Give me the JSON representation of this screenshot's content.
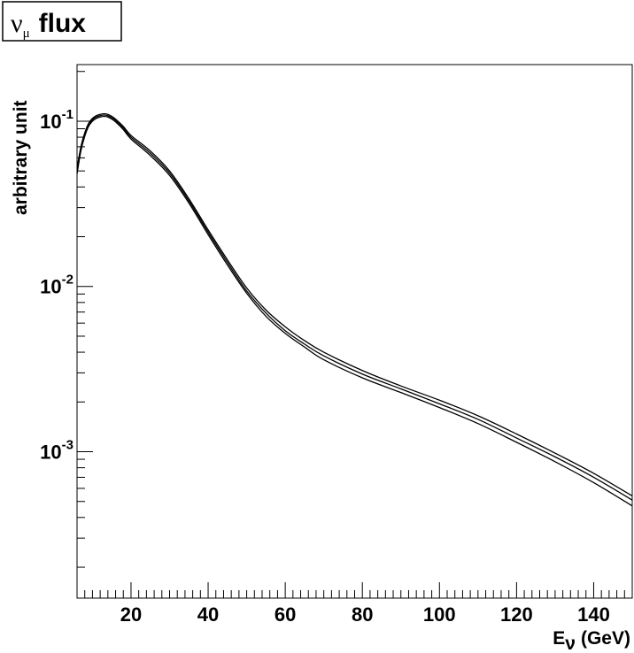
{
  "chart_data": {
    "type": "line",
    "title": {
      "symbol": "ν",
      "subscript": "μ",
      "text": "flux"
    },
    "xlabel": {
      "main": "E",
      "subscript": "ν",
      "unit": "(GeV)"
    },
    "ylabel": "arbitrary unit",
    "x_scale": "linear",
    "y_scale": "log",
    "xlim": [
      6,
      150
    ],
    "ylim": [
      0.00013,
      0.22
    ],
    "x_ticks": [
      20,
      40,
      60,
      80,
      100,
      120,
      140
    ],
    "x_tick_labels": [
      "20",
      "40",
      "60",
      "80",
      "100",
      "120",
      "140"
    ],
    "y_ticks": [
      0.1,
      0.01,
      0.001
    ],
    "y_tick_labels": [
      {
        "base": "10",
        "exp": "-1"
      },
      {
        "base": "10",
        "exp": "-2"
      },
      {
        "base": "10",
        "exp": "-3"
      }
    ],
    "grid": false,
    "legend": false,
    "series": [
      {
        "x": [
          6,
          7,
          8,
          9,
          10,
          11,
          12,
          13,
          14,
          15,
          16,
          18,
          20,
          25,
          30,
          35,
          40,
          45,
          50,
          55,
          60,
          65,
          70,
          80,
          90,
          100,
          110,
          120,
          130,
          140,
          150
        ],
        "values": [
          0.052,
          0.07,
          0.085,
          0.097,
          0.104,
          0.108,
          0.11,
          0.111,
          0.11,
          0.107,
          0.103,
          0.093,
          0.082,
          0.066,
          0.05,
          0.034,
          0.022,
          0.0145,
          0.0098,
          0.0072,
          0.0057,
          0.0047,
          0.004,
          0.0031,
          0.0025,
          0.00205,
          0.00165,
          0.00128,
          0.00098,
          0.00074,
          0.00054
        ]
      },
      {
        "x": [
          6,
          7,
          8,
          9,
          10,
          11,
          12,
          13,
          14,
          15,
          16,
          18,
          20,
          25,
          30,
          35,
          40,
          45,
          50,
          55,
          60,
          65,
          70,
          80,
          90,
          100,
          110,
          120,
          130,
          140,
          150
        ],
        "values": [
          0.05,
          0.068,
          0.083,
          0.095,
          0.102,
          0.106,
          0.108,
          0.109,
          0.108,
          0.105,
          0.101,
          0.091,
          0.08,
          0.064,
          0.0485,
          0.033,
          0.0213,
          0.014,
          0.0094,
          0.0069,
          0.0054,
          0.00448,
          0.0038,
          0.00295,
          0.0024,
          0.00195,
          0.00157,
          0.00121,
          0.00093,
          0.0007,
          0.00051
        ]
      },
      {
        "x": [
          6,
          7,
          8,
          9,
          10,
          11,
          12,
          13,
          14,
          15,
          16,
          18,
          20,
          25,
          30,
          35,
          40,
          45,
          50,
          55,
          60,
          65,
          70,
          80,
          90,
          100,
          110,
          120,
          130,
          140,
          150
        ],
        "values": [
          0.048,
          0.066,
          0.081,
          0.093,
          0.1,
          0.104,
          0.106,
          0.107,
          0.106,
          0.103,
          0.099,
          0.089,
          0.078,
          0.062,
          0.047,
          0.032,
          0.0206,
          0.0135,
          0.0091,
          0.0066,
          0.0052,
          0.0043,
          0.0036,
          0.0028,
          0.00228,
          0.00185,
          0.00148,
          0.00114,
          0.00087,
          0.00065,
          0.00047
        ]
      }
    ]
  }
}
